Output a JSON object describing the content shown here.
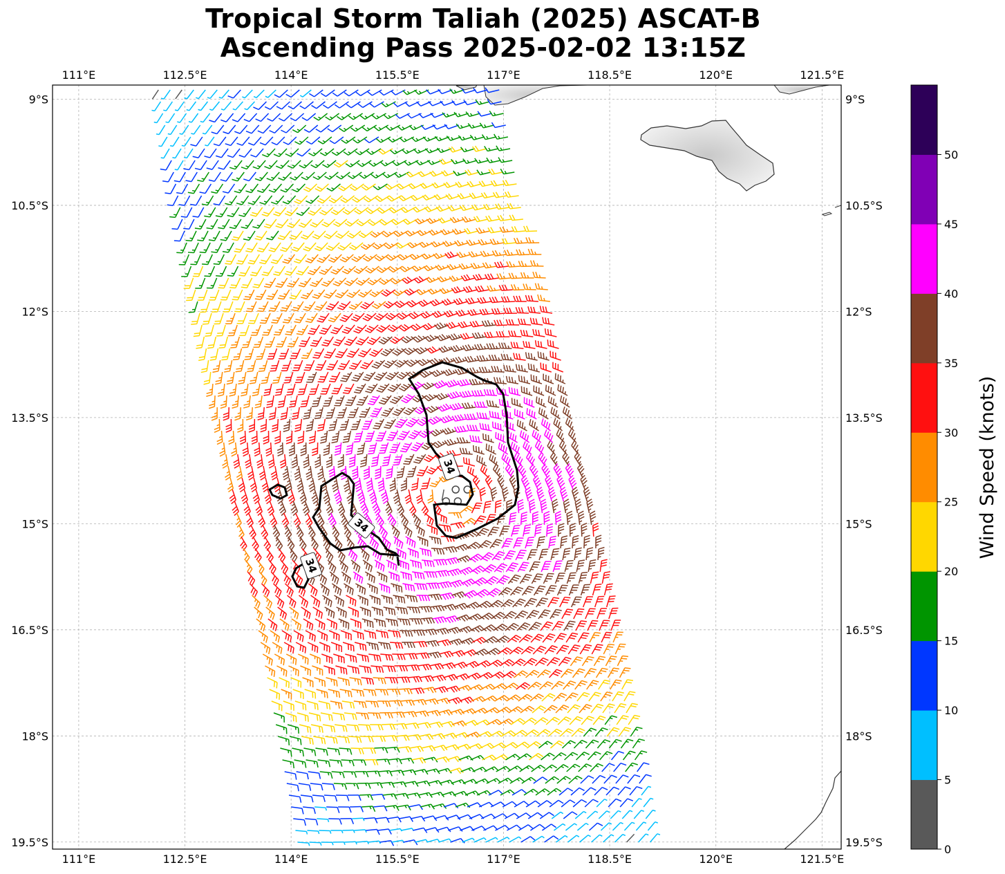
{
  "title": {
    "line1": "Tropical Storm Taliah (2025) ASCAT-B",
    "line2": "Ascending Pass 2025-02-02 13:15Z"
  },
  "map": {
    "lon_range": [
      110.63,
      121.77
    ],
    "lat_range": [
      -19.6,
      -8.8
    ],
    "lon_ticks": [
      "111°E",
      "112.5°E",
      "114°E",
      "115.5°E",
      "117°E",
      "118.5°E",
      "120°E",
      "121.5°E"
    ],
    "lat_ticks": [
      "9°S",
      "10.5°S",
      "12°S",
      "13.5°S",
      "15°S",
      "16.5°S",
      "18°S",
      "19.5°S"
    ],
    "gridlines": "dashed",
    "storm_center": {
      "lon": 116.3,
      "lat": -14.6
    },
    "contour_labels": [
      "34",
      "34",
      "34"
    ]
  },
  "colorbar": {
    "label": "Wind Speed (knots)",
    "ticks": [
      "0",
      "5",
      "10",
      "15",
      "20",
      "25",
      "30",
      "35",
      "40",
      "45",
      "50"
    ],
    "colors": [
      "#595959",
      "#00bfff",
      "#0037ff",
      "#009500",
      "#ffd700",
      "#ff8c00",
      "#ff1010",
      "#7f3f28",
      "#ff00ff",
      "#8000b5",
      "#2d0058"
    ]
  }
}
